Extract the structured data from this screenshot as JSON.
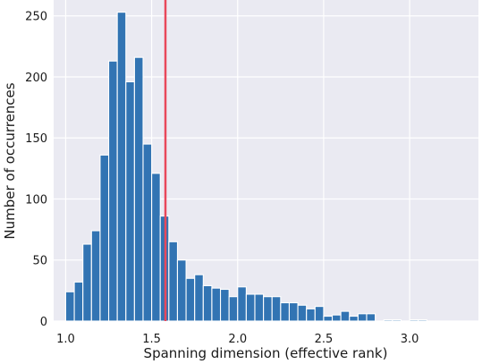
{
  "chart_data": {
    "type": "bar",
    "title": "",
    "xlabel": "Spanning dimension (effective rank)",
    "ylabel": "Number of occurrences",
    "xlim": [
      0.93,
      3.4
    ],
    "ylim": [
      0,
      263
    ],
    "x_ticks": [
      1.0,
      1.5,
      2.0,
      2.5,
      3.0
    ],
    "x_tick_labels": [
      "1.0",
      "1.5",
      "2.0",
      "2.5",
      "3.0"
    ],
    "y_ticks": [
      0,
      50,
      100,
      150,
      200,
      250
    ],
    "y_tick_labels": [
      "0",
      "50",
      "100",
      "150",
      "200",
      "250"
    ],
    "grid": true,
    "legend": false,
    "bar_color": "#3274b3",
    "background_color": "#eaeaf2",
    "reference_line": {
      "x": 1.58,
      "color": "#e8485b"
    },
    "bin_start": 1.0,
    "bin_width": 0.05,
    "values": [
      24,
      32,
      63,
      74,
      136,
      213,
      253,
      196,
      216,
      145,
      121,
      86,
      65,
      50,
      35,
      38,
      29,
      27,
      26,
      20,
      28,
      22,
      22,
      20,
      20,
      15,
      15,
      13,
      10,
      12,
      4,
      5,
      8,
      4,
      6,
      6,
      0,
      1,
      1,
      0,
      1,
      1
    ]
  }
}
